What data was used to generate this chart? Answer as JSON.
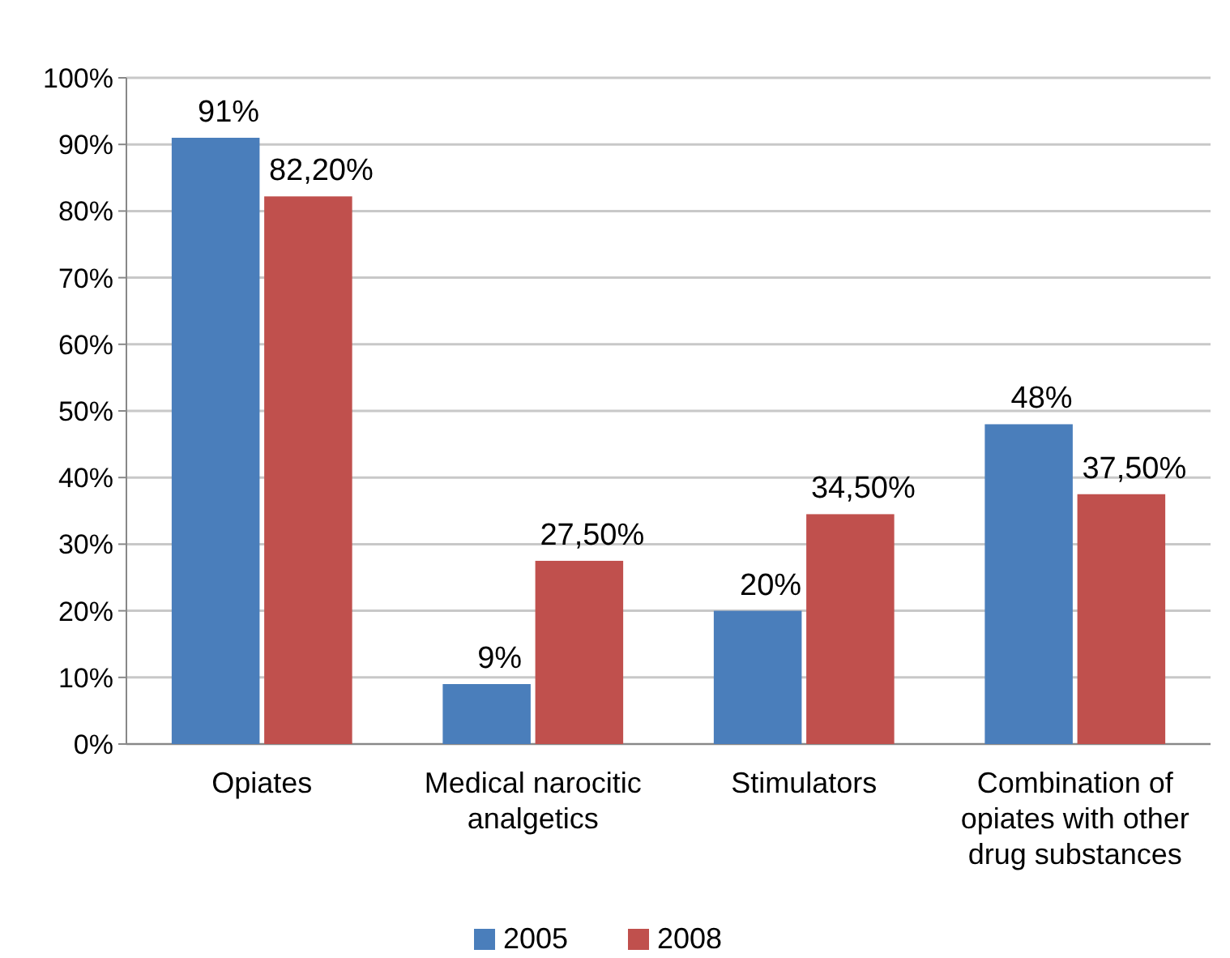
{
  "chart_data": {
    "type": "bar",
    "categories": [
      "Opiates",
      "Medical narocitic analgetics",
      "Stimulators",
      "Combination of opiates with other drug substances"
    ],
    "series": [
      {
        "name": "2005",
        "color": "#4a7ebb",
        "values": [
          91,
          9,
          20,
          48
        ],
        "value_labels": [
          "91%",
          "9%",
          "20%",
          "48%"
        ]
      },
      {
        "name": "2008",
        "color": "#c0504d",
        "values": [
          82.2,
          27.5,
          34.5,
          37.5
        ],
        "value_labels": [
          "82,20%",
          "27,50%",
          "34,50%",
          "37,50%"
        ]
      }
    ],
    "ylim": [
      0,
      100
    ],
    "yticks": [
      {
        "value": 0,
        "label": "0%"
      },
      {
        "value": 10,
        "label": "10%"
      },
      {
        "value": 20,
        "label": "20%"
      },
      {
        "value": 30,
        "label": "30%"
      },
      {
        "value": 40,
        "label": "40%"
      },
      {
        "value": 50,
        "label": "50%"
      },
      {
        "value": 60,
        "label": "60%"
      },
      {
        "value": 70,
        "label": "70%"
      },
      {
        "value": 80,
        "label": "80%"
      },
      {
        "value": 90,
        "label": "90%"
      },
      {
        "value": 100,
        "label": "100%"
      }
    ],
    "grid": "y",
    "legend": "bottom"
  }
}
